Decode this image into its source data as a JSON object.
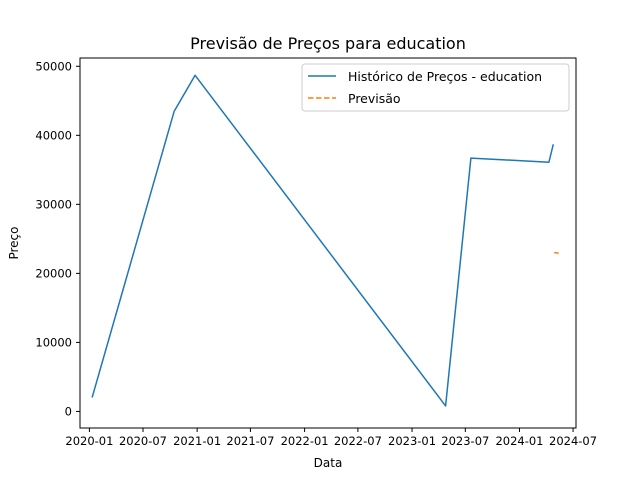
{
  "chart_data": {
    "type": "line",
    "title": "Previsão de Preços para education",
    "xlabel": "Data",
    "ylabel": "Preço",
    "x_axis": "date",
    "xlim": [
      "2019-11-30",
      "2024-07-11"
    ],
    "ylim": [
      -2400,
      51200
    ],
    "x_ticks": [
      "2020-01",
      "2020-07",
      "2021-01",
      "2021-07",
      "2022-01",
      "2022-07",
      "2023-01",
      "2023-07",
      "2024-01",
      "2024-07"
    ],
    "x_tick_dates": [
      "2020-01-01",
      "2020-07-01",
      "2021-01-01",
      "2021-07-01",
      "2022-01-01",
      "2022-07-01",
      "2023-01-01",
      "2023-07-01",
      "2024-01-01",
      "2024-07-01"
    ],
    "y_ticks": [
      0,
      10000,
      20000,
      30000,
      40000,
      50000
    ],
    "grid": false,
    "legend_position": "top-right",
    "series": [
      {
        "name": "Histórico de Preços - education",
        "color": "#1f77b4",
        "style": "solid",
        "points": [
          {
            "x": "2020-01-10",
            "y": 2000
          },
          {
            "x": "2020-10-15",
            "y": 43500
          },
          {
            "x": "2020-12-25",
            "y": 48700
          },
          {
            "x": "2023-04-25",
            "y": 800
          },
          {
            "x": "2023-07-20",
            "y": 36700
          },
          {
            "x": "2024-04-10",
            "y": 36100
          },
          {
            "x": "2024-04-25",
            "y": 38700
          }
        ]
      },
      {
        "name": "Previsão",
        "color": "#ff7f0e",
        "style": "dashed",
        "points": [
          {
            "x": "2024-04-28",
            "y": 23000
          },
          {
            "x": "2024-05-05",
            "y": 23000
          },
          {
            "x": "2024-05-13",
            "y": 22900
          }
        ]
      }
    ]
  }
}
